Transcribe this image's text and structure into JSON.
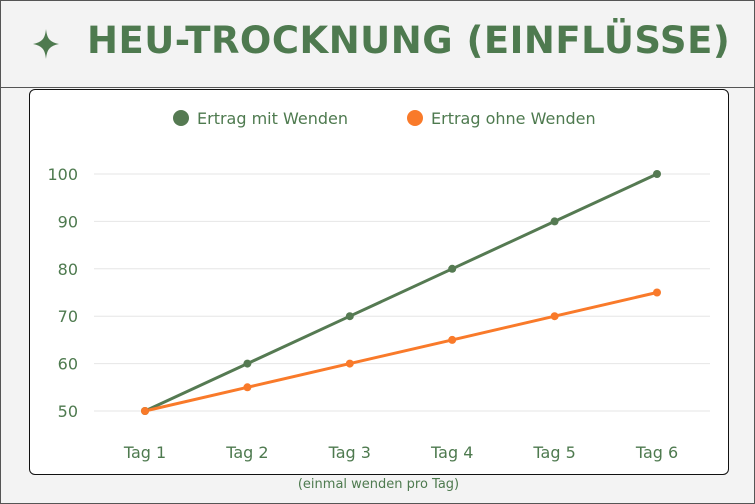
{
  "header": {
    "title": "HEU-TROCKNUNG (EINFLÜSSE)",
    "icon": "sparkle-icon"
  },
  "caption": "(einmal wenden pro Tag)",
  "colors": {
    "green": "#557a52",
    "orange": "#f97a2a",
    "text": "#4e7a4f",
    "grid": "#e6e6e6"
  },
  "chart_data": {
    "type": "line",
    "categories": [
      "Tag 1",
      "Tag 2",
      "Tag 3",
      "Tag 4",
      "Tag 5",
      "Tag 6"
    ],
    "series": [
      {
        "name": "Ertrag mit Wenden",
        "color": "#557a52",
        "values": [
          50,
          60,
          70,
          80,
          90,
          100
        ]
      },
      {
        "name": "Ertrag ohne Wenden",
        "color": "#f97a2a",
        "values": [
          50,
          55,
          60,
          65,
          70,
          75
        ]
      }
    ],
    "yticks": [
      50,
      60,
      70,
      80,
      90,
      100
    ],
    "ylim": [
      50,
      100
    ],
    "grid": true,
    "legend": "top-center"
  }
}
